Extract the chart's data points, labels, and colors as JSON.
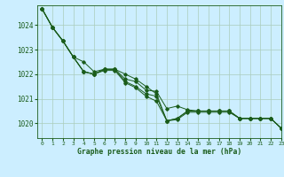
{
  "title": "Graphe pression niveau de la mer (hPa)",
  "background_color": "#cceeff",
  "grid_color": "#aaccbb",
  "line_color": "#1a5c1a",
  "xlim": [
    -0.5,
    23
  ],
  "ylim": [
    1019.4,
    1024.8
  ],
  "xticks": [
    0,
    1,
    2,
    3,
    4,
    5,
    6,
    7,
    8,
    9,
    10,
    11,
    12,
    13,
    14,
    15,
    16,
    17,
    18,
    19,
    20,
    21,
    22,
    23
  ],
  "yticks": [
    1020,
    1021,
    1022,
    1023,
    1024
  ],
  "series": [
    [
      1024.65,
      1023.9,
      1023.35,
      1022.7,
      1022.5,
      1022.1,
      1022.2,
      1022.2,
      1022.0,
      1021.8,
      1021.5,
      1021.2,
      1020.1,
      1020.2,
      1020.5,
      1020.5,
      1020.5,
      1020.5,
      1020.5,
      1020.2,
      1020.2,
      1020.2,
      1020.2,
      1019.8
    ],
    [
      1024.65,
      1023.9,
      1023.35,
      1022.7,
      1022.1,
      1022.0,
      1022.2,
      1022.2,
      1021.7,
      1021.5,
      1021.2,
      1021.1,
      1020.1,
      1020.2,
      1020.5,
      1020.5,
      1020.5,
      1020.5,
      1020.5,
      1020.2,
      1020.2,
      1020.2,
      1020.2,
      1019.8
    ],
    [
      1024.65,
      1023.9,
      1023.35,
      1022.7,
      1022.1,
      1022.0,
      1022.2,
      1022.2,
      1021.8,
      1021.7,
      1021.35,
      1021.3,
      1020.6,
      1020.7,
      1020.55,
      1020.5,
      1020.5,
      1020.5,
      1020.5,
      1020.2,
      1020.2,
      1020.2,
      1020.2,
      1019.8
    ],
    [
      1024.65,
      1023.9,
      1023.35,
      1022.7,
      1022.1,
      1022.0,
      1022.15,
      1022.15,
      1021.65,
      1021.45,
      1021.1,
      1020.9,
      1020.1,
      1020.15,
      1020.45,
      1020.45,
      1020.45,
      1020.45,
      1020.45,
      1020.2,
      1020.2,
      1020.2,
      1020.2,
      1019.8
    ]
  ],
  "straight_line": [
    1024.65,
    1019.8
  ]
}
